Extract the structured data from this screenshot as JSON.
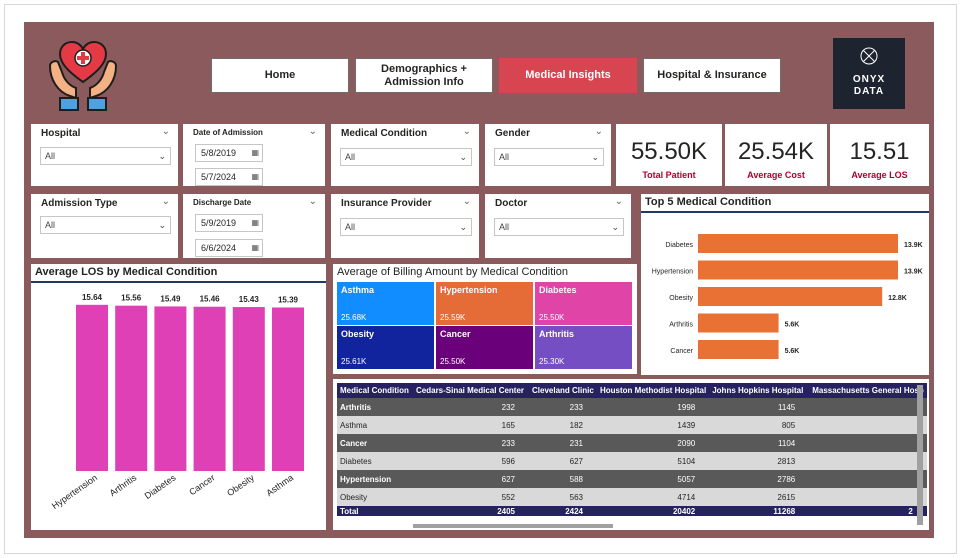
{
  "nav": {
    "home": "Home",
    "demographics": "Demographics +\nAdmission Info",
    "medical": "Medical Insights",
    "hospital": "Hospital & Insurance"
  },
  "brand": {
    "line1": "ONYX",
    "line2": "DATA",
    "logo_icon": "heart-hands-icon"
  },
  "slicers": {
    "hospital": {
      "title": "Hospital",
      "value": "All"
    },
    "date_of_admission": {
      "title": "Date of Admission",
      "from": "5/8/2019",
      "to": "5/7/2024"
    },
    "medical_condition": {
      "title": "Medical Condition",
      "value": "All"
    },
    "gender": {
      "title": "Gender",
      "value": "All"
    },
    "admission_type": {
      "title": "Admission Type",
      "value": "All"
    },
    "discharge_date": {
      "title": "Discharge Date",
      "from": "5/9/2019",
      "to": "6/6/2024"
    },
    "insurance_provider": {
      "title": "Insurance Provider",
      "value": "All"
    },
    "doctor": {
      "title": "Doctor",
      "value": "All"
    }
  },
  "kpis": [
    {
      "value": "55.50K",
      "label": "Total Patient"
    },
    {
      "value": "25.54K",
      "label": "Average Cost"
    },
    {
      "value": "15.51",
      "label": "Average LOS"
    }
  ],
  "colors": {
    "pink": "#e040b5",
    "orange": "#e97133",
    "navy": "#262262",
    "accent_red": "#d64550"
  },
  "chart_data": [
    {
      "type": "bar",
      "title": "Average LOS by Medical Condition",
      "categories": [
        "Hypertension",
        "Arthritis",
        "Diabetes",
        "Cancer",
        "Obesity",
        "Asthma"
      ],
      "values": [
        15.64,
        15.56,
        15.49,
        15.46,
        15.43,
        15.39
      ],
      "labels": [
        "15.64",
        "15.56",
        "15.49",
        "15.46",
        "15.43",
        "15.39"
      ],
      "xlabel": "",
      "ylabel": ""
    },
    {
      "type": "treemap",
      "title": "Average of Billing Amount by Medical Condition",
      "categories": [
        "Asthma",
        "Hypertension",
        "Diabetes",
        "Obesity",
        "Cancer",
        "Arthritis"
      ],
      "values": [
        25680,
        25590,
        25500,
        25610,
        25500,
        25300
      ],
      "labels": [
        "25.68K",
        "25.59K",
        "25.50K",
        "25.61K",
        "25.50K",
        "25.30K"
      ],
      "colors": [
        "#118dff",
        "#e66c37",
        "#e044a7",
        "#12239e",
        "#6b007b",
        "#744ec2"
      ]
    },
    {
      "type": "bar",
      "orientation": "horizontal",
      "title": "Top 5 Medical Condition",
      "categories": [
        "Diabetes",
        "Hypertension",
        "Obesity",
        "Arthritis",
        "Cancer"
      ],
      "values": [
        13900,
        13900,
        12800,
        5600,
        5600
      ],
      "labels": [
        "13.9K",
        "13.9K",
        "12.8K",
        "5.6K",
        "5.6K"
      ]
    },
    {
      "type": "table",
      "columns": [
        "Medical Condition",
        "Cedars-Sinai Medical Center",
        "Cleveland Clinic",
        "Houston Methodist Hospital",
        "Johns Hopkins Hospital",
        "Massachusetts General Hosp"
      ],
      "rows": [
        [
          "Arthritis",
          "232",
          "233",
          "1998",
          "1145",
          ""
        ],
        [
          "Asthma",
          "165",
          "182",
          "1439",
          "805",
          ""
        ],
        [
          "Cancer",
          "233",
          "231",
          "2090",
          "1104",
          ""
        ],
        [
          "Diabetes",
          "596",
          "627",
          "5104",
          "2813",
          ""
        ],
        [
          "Hypertension",
          "627",
          "588",
          "5057",
          "2786",
          ""
        ],
        [
          "Obesity",
          "552",
          "563",
          "4714",
          "2615",
          ""
        ]
      ],
      "total": [
        "Total",
        "2405",
        "2424",
        "20402",
        "11268",
        "2"
      ]
    }
  ]
}
